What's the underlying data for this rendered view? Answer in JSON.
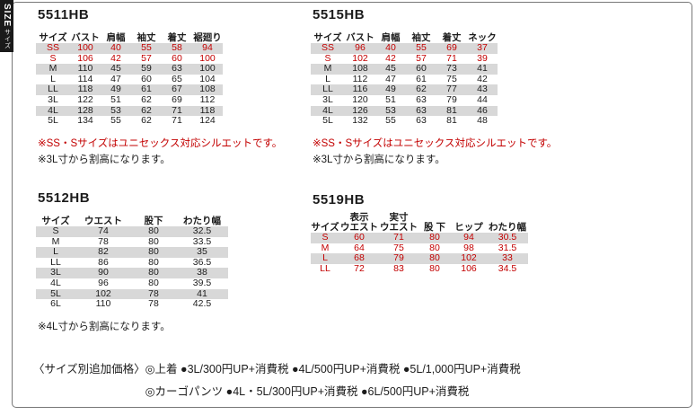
{
  "colors": {
    "accent_red": "#c30000",
    "stripe_gray": "#d8d8d8",
    "tab_bg": "#1a1a1a",
    "frame_border": "#777777"
  },
  "tab": {
    "en": "SIZE",
    "jp": "サイズ"
  },
  "tables": [
    {
      "id": "5511hb",
      "title": "5511HB",
      "headers": [
        "サイズ",
        "バスト",
        "肩幅",
        "袖丈",
        "着丈",
        "裾廻り"
      ],
      "rows": [
        {
          "size": "SS",
          "values": [
            "100",
            "40",
            "55",
            "58",
            "94"
          ],
          "red": true
        },
        {
          "size": "S",
          "values": [
            "106",
            "42",
            "57",
            "60",
            "100"
          ],
          "red": true
        },
        {
          "size": "M",
          "values": [
            "110",
            "45",
            "59",
            "63",
            "100"
          ],
          "red": false
        },
        {
          "size": "L",
          "values": [
            "114",
            "47",
            "60",
            "65",
            "104"
          ],
          "red": false
        },
        {
          "size": "LL",
          "values": [
            "118",
            "49",
            "61",
            "67",
            "108"
          ],
          "red": false
        },
        {
          "size": "3L",
          "values": [
            "122",
            "51",
            "62",
            "69",
            "112"
          ],
          "red": false
        },
        {
          "size": "4L",
          "values": [
            "128",
            "53",
            "62",
            "71",
            "118"
          ],
          "red": false
        },
        {
          "size": "5L",
          "values": [
            "134",
            "55",
            "62",
            "71",
            "124"
          ],
          "red": false
        }
      ],
      "notes": [
        {
          "text": "※SS・Sサイズはユニセックス対応シルエットです。",
          "red": true
        },
        {
          "text": "※3L寸から割高になります。",
          "red": false
        }
      ]
    },
    {
      "id": "5515hb",
      "title": "5515HB",
      "headers": [
        "サイズ",
        "バスト",
        "肩幅",
        "袖丈",
        "着丈",
        "ネック"
      ],
      "rows": [
        {
          "size": "SS",
          "values": [
            "96",
            "40",
            "55",
            "69",
            "37"
          ],
          "red": true
        },
        {
          "size": "S",
          "values": [
            "102",
            "42",
            "57",
            "71",
            "39"
          ],
          "red": true
        },
        {
          "size": "M",
          "values": [
            "108",
            "45",
            "60",
            "73",
            "41"
          ],
          "red": false
        },
        {
          "size": "L",
          "values": [
            "112",
            "47",
            "61",
            "75",
            "42"
          ],
          "red": false
        },
        {
          "size": "LL",
          "values": [
            "116",
            "49",
            "62",
            "77",
            "43"
          ],
          "red": false
        },
        {
          "size": "3L",
          "values": [
            "120",
            "51",
            "63",
            "79",
            "44"
          ],
          "red": false
        },
        {
          "size": "4L",
          "values": [
            "126",
            "53",
            "63",
            "81",
            "46"
          ],
          "red": false
        },
        {
          "size": "5L",
          "values": [
            "132",
            "55",
            "63",
            "81",
            "48"
          ],
          "red": false
        }
      ],
      "notes": [
        {
          "text": "※SS・Sサイズはユニセックス対応シルエットです。",
          "red": true
        },
        {
          "text": "※3L寸から割高になります。",
          "red": false
        }
      ]
    },
    {
      "id": "5512hb",
      "title": "5512HB",
      "headers": [
        "サイズ",
        "ウエスト",
        "股下",
        "わたり幅"
      ],
      "rows": [
        {
          "size": "S",
          "values": [
            "74",
            "80",
            "32.5"
          ],
          "red": false
        },
        {
          "size": "M",
          "values": [
            "78",
            "80",
            "33.5"
          ],
          "red": false
        },
        {
          "size": "L",
          "values": [
            "82",
            "80",
            "35"
          ],
          "red": false
        },
        {
          "size": "LL",
          "values": [
            "86",
            "80",
            "36.5"
          ],
          "red": false
        },
        {
          "size": "3L",
          "values": [
            "90",
            "80",
            "38"
          ],
          "red": false
        },
        {
          "size": "4L",
          "values": [
            "96",
            "80",
            "39.5"
          ],
          "red": false
        },
        {
          "size": "5L",
          "values": [
            "102",
            "78",
            "41"
          ],
          "red": false
        },
        {
          "size": "6L",
          "values": [
            "110",
            "78",
            "42.5"
          ],
          "red": false
        }
      ],
      "notes": [
        {
          "text": "※4L寸から割高になります。",
          "red": false
        }
      ]
    },
    {
      "id": "5519hb",
      "title": "5519HB",
      "headers": [
        "サイズ",
        "表示\nウエスト",
        "実寸\nウエスト",
        "股 下",
        "ヒップ",
        "わたり幅"
      ],
      "rows": [
        {
          "size": "S",
          "values": [
            "60",
            "71",
            "80",
            "94",
            "30.5"
          ],
          "red": true
        },
        {
          "size": "M",
          "values": [
            "64",
            "75",
            "80",
            "98",
            "31.5"
          ],
          "red": true
        },
        {
          "size": "L",
          "values": [
            "68",
            "79",
            "80",
            "102",
            "33"
          ],
          "red": true
        },
        {
          "size": "LL",
          "values": [
            "72",
            "83",
            "80",
            "106",
            "34.5"
          ],
          "red": true
        }
      ],
      "notes": []
    }
  ],
  "footer": {
    "prefix": "〈サイズ別追加価格〉",
    "line1": "◎上着 ●3L/300円UP+消費税 ●4L/500円UP+消費税 ●5L/1,000円UP+消費税",
    "line2": "◎カーゴパンツ ●4L・5L/300円UP+消費税 ●6L/500円UP+消費税"
  }
}
